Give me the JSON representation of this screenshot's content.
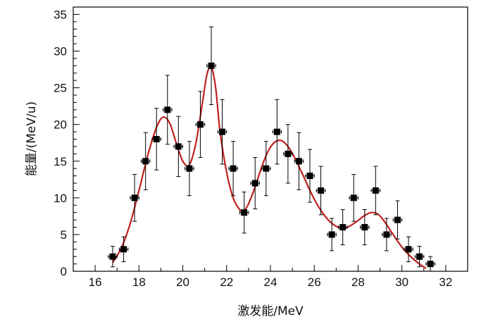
{
  "chart_data": {
    "type": "scatter",
    "title": "",
    "xlabel": "激发能/MeV",
    "ylabel": "能量/(MeV/u)",
    "xlim": [
      15,
      33
    ],
    "ylim": [
      0,
      36
    ],
    "xticks": [
      16,
      18,
      20,
      22,
      24,
      26,
      28,
      30,
      32
    ],
    "yticks": [
      0,
      5,
      10,
      15,
      20,
      25,
      30,
      35
    ],
    "grid": false,
    "legend": "none",
    "colors": {
      "points": "#000000",
      "fit": "#c0201c"
    },
    "series": [
      {
        "kind": "points-with-errors",
        "x": [
          16.8,
          17.3,
          17.8,
          18.3,
          18.8,
          19.3,
          19.8,
          20.3,
          20.8,
          21.3,
          21.8,
          22.3,
          22.8,
          23.3,
          23.8,
          24.3,
          24.8,
          25.3,
          25.8,
          26.3,
          26.8,
          27.3,
          27.8,
          28.3,
          28.8,
          29.3,
          29.8,
          30.3,
          30.8,
          31.3
        ],
        "y": [
          2,
          3,
          10,
          15,
          18,
          22,
          17,
          14,
          20,
          28,
          19,
          14,
          8,
          12,
          14,
          19,
          16,
          15,
          13,
          11,
          5,
          6,
          10,
          6,
          11,
          5,
          7,
          3,
          2,
          1
        ],
        "yerr": [
          1.4,
          1.7,
          3.2,
          3.9,
          4.2,
          4.7,
          4.1,
          3.7,
          4.5,
          5.3,
          4.4,
          3.7,
          2.8,
          3.5,
          3.7,
          4.4,
          4.0,
          3.9,
          3.6,
          3.3,
          2.2,
          2.4,
          3.2,
          2.4,
          3.3,
          2.2,
          2.6,
          1.7,
          1.4,
          1.0
        ],
        "xerr": 0.2
      },
      {
        "kind": "fit-curve",
        "x": [
          16.8,
          17.2,
          17.6,
          18.0,
          18.4,
          18.8,
          19.1,
          19.4,
          19.7,
          20.0,
          20.3,
          20.6,
          20.9,
          21.1,
          21.3,
          21.5,
          21.7,
          22.0,
          22.3,
          22.6,
          22.8,
          23.0,
          23.3,
          23.6,
          23.9,
          24.2,
          24.5,
          24.8,
          25.1,
          25.5,
          25.9,
          26.3,
          26.7,
          27.1,
          27.5,
          27.9,
          28.3,
          28.6,
          28.9,
          29.2,
          29.6,
          30.0,
          30.4,
          30.8,
          31.1
        ],
        "y": [
          1.2,
          3.2,
          6.5,
          11.0,
          15.8,
          19.6,
          21.0,
          20.2,
          17.5,
          15.0,
          14.5,
          17.5,
          23.0,
          26.8,
          27.8,
          25.0,
          19.0,
          13.5,
          10.0,
          8.4,
          8.3,
          9.2,
          11.5,
          14.2,
          16.4,
          17.6,
          17.8,
          17.0,
          15.5,
          13.0,
          10.4,
          8.3,
          6.8,
          6.0,
          6.0,
          6.7,
          7.6,
          8.0,
          7.8,
          6.8,
          5.0,
          3.3,
          2.0,
          1.0,
          0.4
        ]
      }
    ]
  }
}
